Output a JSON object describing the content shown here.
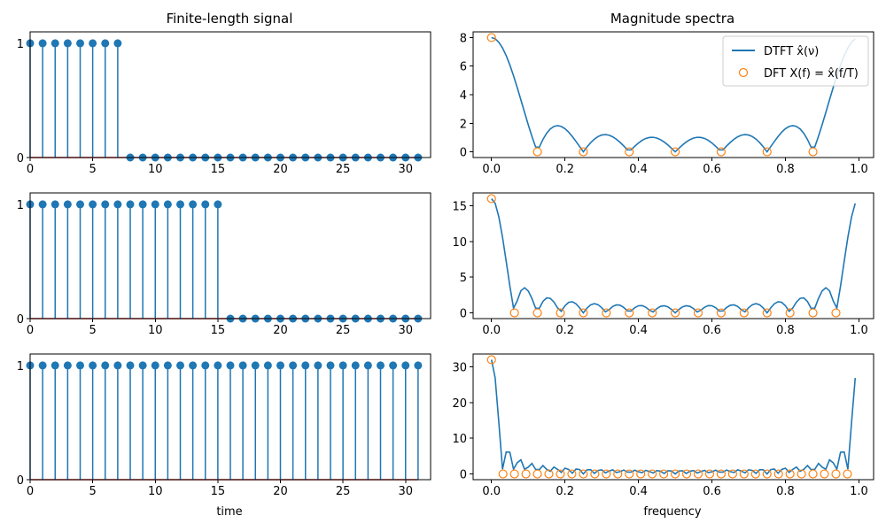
{
  "figure": {
    "left_title": "Finite-length signal",
    "right_title": "Magnitude spectra",
    "left_xlabel": "time",
    "right_xlabel": "frequency"
  },
  "legend": {
    "dtft_label": "DTFT x̂(ν)",
    "dft_label": "DFT X(f) = x̂(f/T)",
    "placement": "upper-right"
  },
  "colors": {
    "stem": "#1f77b4",
    "baseline": "#d62728",
    "dtft": "#1f77b4",
    "dft": "#ff7f0e"
  },
  "chart_data": [
    {
      "type": "stem",
      "column": "Finite-length signal",
      "N": 32,
      "ones": 8,
      "x_start": 0,
      "values": [
        1,
        1,
        1,
        1,
        1,
        1,
        1,
        1,
        0,
        0,
        0,
        0,
        0,
        0,
        0,
        0,
        0,
        0,
        0,
        0,
        0,
        0,
        0,
        0,
        0,
        0,
        0,
        0,
        0,
        0,
        0,
        0
      ],
      "xlim": [
        0,
        32
      ],
      "ylim": [
        0,
        1.1
      ],
      "xticks": [
        0,
        5,
        10,
        15,
        20,
        25,
        30
      ],
      "yticks": [
        0,
        1
      ]
    },
    {
      "type": "line+scatter",
      "column": "Magnitude spectra",
      "window_length": 8,
      "N": 32,
      "T": 8,
      "dft_points": [
        [
          0,
          8
        ],
        [
          0.125,
          0
        ],
        [
          0.25,
          0
        ],
        [
          0.375,
          0
        ],
        [
          0.5,
          0
        ],
        [
          0.625,
          0
        ],
        [
          0.75,
          0
        ],
        [
          0.875,
          0
        ]
      ],
      "xlim": [
        -0.05,
        1.04
      ],
      "ylim": [
        -0.4,
        8.4
      ],
      "xticks": [
        0.0,
        0.2,
        0.4,
        0.6,
        0.8,
        1.0
      ],
      "yticks": [
        0,
        2,
        4,
        6,
        8
      ]
    },
    {
      "type": "stem",
      "column": "Finite-length signal",
      "N": 32,
      "ones": 16,
      "x_start": 0,
      "values": [
        1,
        1,
        1,
        1,
        1,
        1,
        1,
        1,
        1,
        1,
        1,
        1,
        1,
        1,
        1,
        1,
        0,
        0,
        0,
        0,
        0,
        0,
        0,
        0,
        0,
        0,
        0,
        0,
        0,
        0,
        0,
        0
      ],
      "xlim": [
        0,
        32
      ],
      "ylim": [
        0,
        1.1
      ],
      "xticks": [
        0,
        5,
        10,
        15,
        20,
        25,
        30
      ],
      "yticks": [
        0,
        1
      ]
    },
    {
      "type": "line+scatter",
      "column": "Magnitude spectra",
      "window_length": 16,
      "N": 32,
      "T": 16,
      "dft_points": [
        [
          0,
          16
        ],
        [
          0.0625,
          0
        ],
        [
          0.125,
          0
        ],
        [
          0.1875,
          0
        ],
        [
          0.25,
          0
        ],
        [
          0.3125,
          0
        ],
        [
          0.375,
          0
        ],
        [
          0.4375,
          0
        ],
        [
          0.5,
          0
        ],
        [
          0.5625,
          0
        ],
        [
          0.625,
          0
        ],
        [
          0.6875,
          0
        ],
        [
          0.75,
          0
        ],
        [
          0.8125,
          0
        ],
        [
          0.875,
          0
        ],
        [
          0.9375,
          0
        ]
      ],
      "xlim": [
        -0.05,
        1.04
      ],
      "ylim": [
        -0.8,
        16.8
      ],
      "xticks": [
        0.0,
        0.2,
        0.4,
        0.6,
        0.8,
        1.0
      ],
      "yticks": [
        0,
        5,
        10,
        15
      ]
    },
    {
      "type": "stem",
      "column": "Finite-length signal",
      "N": 32,
      "ones": 32,
      "x_start": 0,
      "values": [
        1,
        1,
        1,
        1,
        1,
        1,
        1,
        1,
        1,
        1,
        1,
        1,
        1,
        1,
        1,
        1,
        1,
        1,
        1,
        1,
        1,
        1,
        1,
        1,
        1,
        1,
        1,
        1,
        1,
        1,
        1,
        1
      ],
      "xlim": [
        0,
        32
      ],
      "ylim": [
        0,
        1.1
      ],
      "xticks": [
        0,
        5,
        10,
        15,
        20,
        25,
        30
      ],
      "yticks": [
        0,
        1
      ]
    },
    {
      "type": "line+scatter",
      "column": "Magnitude spectra",
      "window_length": 32,
      "N": 32,
      "T": 32,
      "dft_points": [
        [
          0,
          32
        ],
        [
          0.03125,
          0
        ],
        [
          0.0625,
          0
        ],
        [
          0.09375,
          0
        ],
        [
          0.125,
          0
        ],
        [
          0.15625,
          0
        ],
        [
          0.1875,
          0
        ],
        [
          0.21875,
          0
        ],
        [
          0.25,
          0
        ],
        [
          0.28125,
          0
        ],
        [
          0.3125,
          0
        ],
        [
          0.34375,
          0
        ],
        [
          0.375,
          0
        ],
        [
          0.40625,
          0
        ],
        [
          0.4375,
          0
        ],
        [
          0.46875,
          0
        ],
        [
          0.5,
          0
        ],
        [
          0.53125,
          0
        ],
        [
          0.5625,
          0
        ],
        [
          0.59375,
          0
        ],
        [
          0.625,
          0
        ],
        [
          0.65625,
          0
        ],
        [
          0.6875,
          0
        ],
        [
          0.71875,
          0
        ],
        [
          0.75,
          0
        ],
        [
          0.78125,
          0
        ],
        [
          0.8125,
          0
        ],
        [
          0.84375,
          0
        ],
        [
          0.875,
          0
        ],
        [
          0.90625,
          0
        ],
        [
          0.9375,
          0
        ],
        [
          0.96875,
          0
        ]
      ],
      "xlim": [
        -0.05,
        1.04
      ],
      "ylim": [
        -1.6,
        33.6
      ],
      "xticks": [
        0.0,
        0.2,
        0.4,
        0.6,
        0.8,
        1.0
      ],
      "yticks": [
        0,
        10,
        20,
        30
      ]
    }
  ]
}
